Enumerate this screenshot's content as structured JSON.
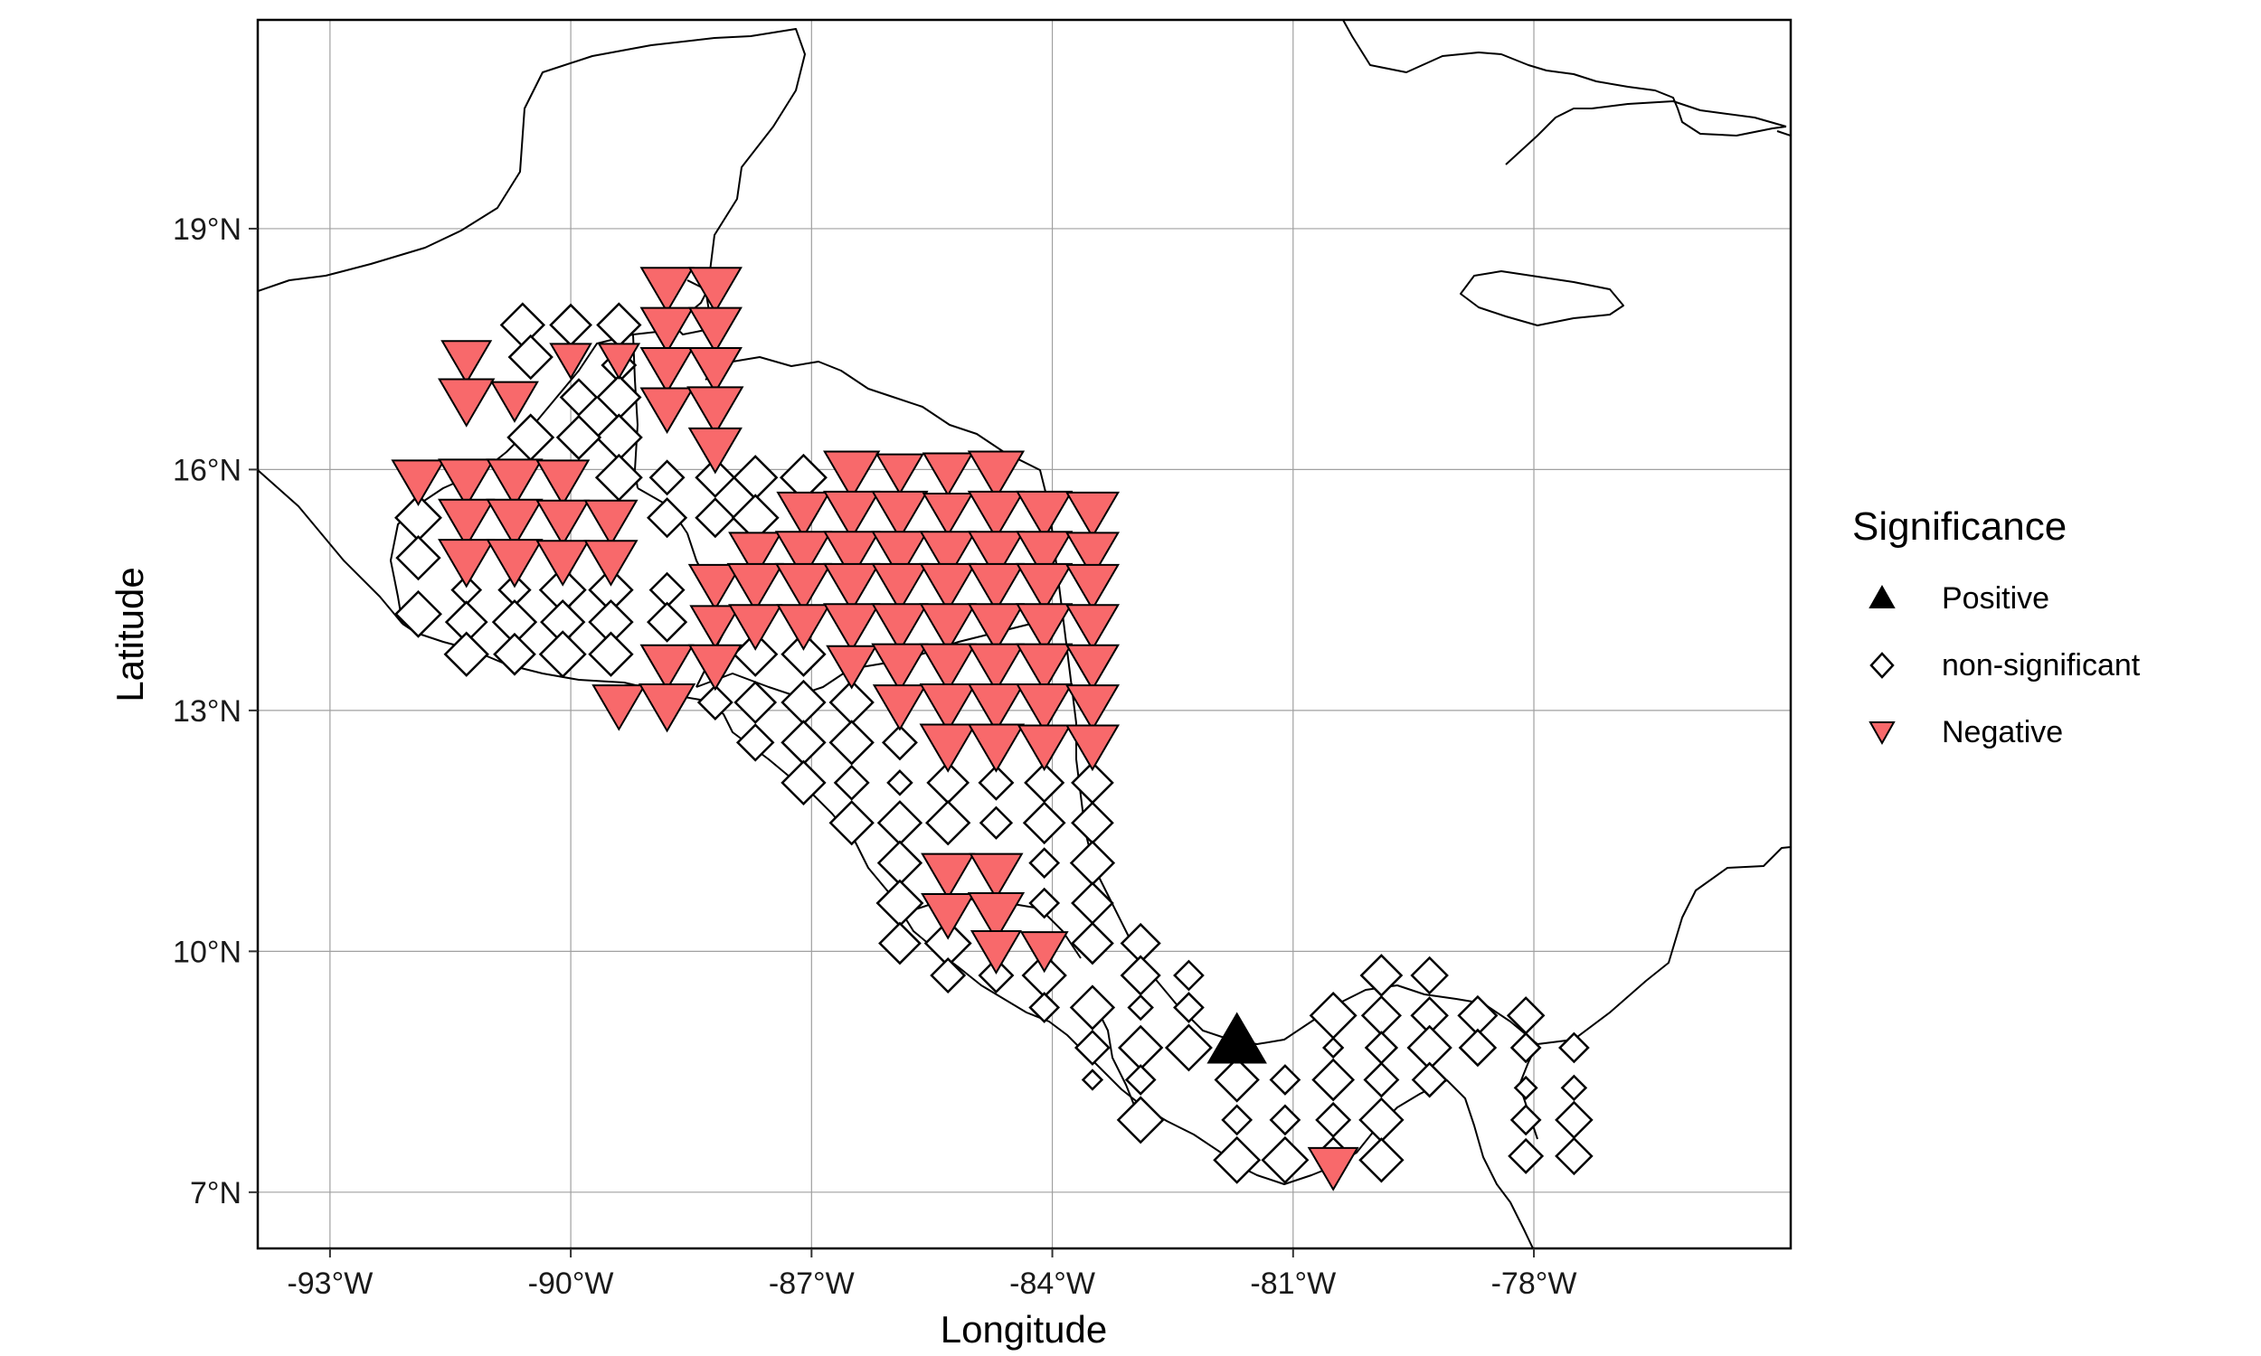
{
  "chart_data": {
    "type": "scatter",
    "xlabel": "Longitude",
    "ylabel": "Latitude",
    "xlim": [
      -93.9,
      -74.8
    ],
    "ylim": [
      6.3,
      21.6
    ],
    "x_ticks": [
      {
        "value": -93,
        "label": "-93°W"
      },
      {
        "value": -90,
        "label": "-90°W"
      },
      {
        "value": -87,
        "label": "-87°W"
      },
      {
        "value": -84,
        "label": "-84°W"
      },
      {
        "value": -81,
        "label": "-81°W"
      },
      {
        "value": -78,
        "label": "-78°W"
      }
    ],
    "y_ticks": [
      {
        "value": 7,
        "label": "7°N"
      },
      {
        "value": 10,
        "label": "10°N"
      },
      {
        "value": 13,
        "label": "13°N"
      },
      {
        "value": 16,
        "label": "16°N"
      },
      {
        "value": 19,
        "label": "19°N"
      }
    ],
    "grid": true,
    "legend": {
      "title": "Significance",
      "placement": "right",
      "entries": [
        {
          "key": "positive",
          "label": "Positive",
          "color": "#000000",
          "shape": "triangle-up"
        },
        {
          "key": "nonsig",
          "label": "non-significant",
          "color": "#ffffff",
          "shape": "diamond"
        },
        {
          "key": "negative",
          "label": "Negative",
          "color": "#f8696b",
          "shape": "triangle-down"
        }
      ]
    },
    "series": [
      {
        "name": "Positive",
        "points": [
          [
            -81.7,
            8.85,
            1.0
          ]
        ]
      },
      {
        "name": "Negative",
        "points": [
          [
            -88.8,
            18.3,
            0.9
          ],
          [
            -88.2,
            18.3,
            0.9
          ],
          [
            -88.8,
            17.8,
            0.9
          ],
          [
            -88.2,
            17.8,
            0.9
          ],
          [
            -91.3,
            17.4,
            0.85
          ],
          [
            -90.0,
            17.4,
            0.7
          ],
          [
            -89.4,
            17.4,
            0.7
          ],
          [
            -88.8,
            17.3,
            0.9
          ],
          [
            -88.2,
            17.3,
            0.9
          ],
          [
            -91.3,
            16.9,
            0.95
          ],
          [
            -90.7,
            16.9,
            0.8
          ],
          [
            -88.8,
            16.8,
            0.9
          ],
          [
            -88.2,
            16.8,
            0.95
          ],
          [
            -88.2,
            16.3,
            0.9
          ],
          [
            -91.9,
            15.9,
            0.9
          ],
          [
            -91.3,
            15.9,
            0.95
          ],
          [
            -90.7,
            15.9,
            0.95
          ],
          [
            -90.1,
            15.9,
            0.9
          ],
          [
            -86.5,
            16.0,
            0.95
          ],
          [
            -85.9,
            16.0,
            0.8
          ],
          [
            -85.3,
            16.0,
            0.85
          ],
          [
            -84.7,
            16.0,
            0.95
          ],
          [
            -91.3,
            15.4,
            0.95
          ],
          [
            -90.7,
            15.4,
            0.95
          ],
          [
            -90.1,
            15.4,
            0.9
          ],
          [
            -89.5,
            15.4,
            0.9
          ],
          [
            -87.1,
            15.5,
            0.9
          ],
          [
            -86.5,
            15.5,
            0.95
          ],
          [
            -85.9,
            15.5,
            0.95
          ],
          [
            -85.3,
            15.5,
            0.85
          ],
          [
            -84.7,
            15.5,
            0.95
          ],
          [
            -84.1,
            15.5,
            0.95
          ],
          [
            -83.5,
            15.5,
            0.9
          ],
          [
            -91.3,
            14.9,
            0.95
          ],
          [
            -90.7,
            14.9,
            0.95
          ],
          [
            -90.1,
            14.9,
            0.9
          ],
          [
            -89.5,
            14.9,
            0.9
          ],
          [
            -87.7,
            15.0,
            0.9
          ],
          [
            -87.1,
            15.0,
            0.95
          ],
          [
            -86.5,
            15.0,
            0.95
          ],
          [
            -85.9,
            15.0,
            0.95
          ],
          [
            -85.3,
            15.0,
            0.95
          ],
          [
            -84.7,
            15.0,
            0.95
          ],
          [
            -84.1,
            15.0,
            0.95
          ],
          [
            -83.5,
            15.0,
            0.9
          ],
          [
            -88.2,
            14.6,
            0.9
          ],
          [
            -87.7,
            14.6,
            0.95
          ],
          [
            -87.1,
            14.6,
            0.95
          ],
          [
            -86.5,
            14.6,
            0.95
          ],
          [
            -85.9,
            14.6,
            0.95
          ],
          [
            -85.3,
            14.6,
            0.95
          ],
          [
            -84.7,
            14.6,
            0.95
          ],
          [
            -84.1,
            14.6,
            0.95
          ],
          [
            -83.5,
            14.6,
            0.9
          ],
          [
            -88.2,
            14.1,
            0.85
          ],
          [
            -87.7,
            14.1,
            0.9
          ],
          [
            -87.1,
            14.1,
            0.9
          ],
          [
            -86.5,
            14.1,
            0.95
          ],
          [
            -85.9,
            14.1,
            0.95
          ],
          [
            -85.3,
            14.1,
            0.95
          ],
          [
            -84.7,
            14.1,
            0.95
          ],
          [
            -84.1,
            14.1,
            0.95
          ],
          [
            -83.5,
            14.1,
            0.9
          ],
          [
            -88.8,
            13.6,
            0.9
          ],
          [
            -88.2,
            13.6,
            0.9
          ],
          [
            -86.5,
            13.6,
            0.85
          ],
          [
            -85.9,
            13.6,
            0.95
          ],
          [
            -85.3,
            13.6,
            0.95
          ],
          [
            -84.7,
            13.6,
            0.95
          ],
          [
            -84.1,
            13.6,
            0.95
          ],
          [
            -83.5,
            13.6,
            0.9
          ],
          [
            -89.4,
            13.1,
            0.9
          ],
          [
            -88.8,
            13.1,
            0.95
          ],
          [
            -85.9,
            13.1,
            0.9
          ],
          [
            -85.3,
            13.1,
            0.95
          ],
          [
            -84.7,
            13.1,
            0.95
          ],
          [
            -84.1,
            13.1,
            0.95
          ],
          [
            -83.5,
            13.1,
            0.9
          ],
          [
            -85.3,
            12.6,
            0.95
          ],
          [
            -84.7,
            12.6,
            0.95
          ],
          [
            -84.1,
            12.6,
            0.9
          ],
          [
            -83.5,
            12.6,
            0.9
          ],
          [
            -85.3,
            11.0,
            0.9
          ],
          [
            -84.7,
            11.0,
            0.9
          ],
          [
            -85.3,
            10.5,
            0.9
          ],
          [
            -84.7,
            10.5,
            0.95
          ],
          [
            -84.7,
            10.05,
            0.85
          ],
          [
            -84.1,
            10.05,
            0.8
          ],
          [
            -80.5,
            7.35,
            0.85
          ]
        ]
      },
      {
        "name": "non-significant",
        "points": [
          [
            -90.6,
            17.8,
            0.9
          ],
          [
            -90.0,
            17.8,
            0.85
          ],
          [
            -89.4,
            17.8,
            0.9
          ],
          [
            -89.4,
            17.3,
            0.7
          ],
          [
            -90.5,
            17.4,
            0.9
          ],
          [
            -89.4,
            16.9,
            0.9
          ],
          [
            -89.9,
            16.9,
            0.75
          ],
          [
            -89.4,
            16.4,
            0.95
          ],
          [
            -89.9,
            16.4,
            0.9
          ],
          [
            -90.5,
            16.4,
            0.95
          ],
          [
            -89.4,
            15.9,
            0.95
          ],
          [
            -88.8,
            15.9,
            0.7
          ],
          [
            -88.2,
            15.9,
            0.8
          ],
          [
            -87.7,
            15.9,
            0.9
          ],
          [
            -87.1,
            15.9,
            0.95
          ],
          [
            -91.9,
            15.4,
            0.95
          ],
          [
            -88.8,
            15.4,
            0.8
          ],
          [
            -88.2,
            15.4,
            0.8
          ],
          [
            -87.7,
            15.4,
            0.95
          ],
          [
            -91.9,
            14.9,
            0.9
          ],
          [
            -91.3,
            14.5,
            0.6
          ],
          [
            -90.7,
            14.5,
            0.65
          ],
          [
            -89.5,
            14.5,
            0.9
          ],
          [
            -88.8,
            14.5,
            0.7
          ],
          [
            -90.1,
            14.5,
            0.95
          ],
          [
            -91.9,
            14.2,
            0.95
          ],
          [
            -91.3,
            14.1,
            0.85
          ],
          [
            -90.7,
            14.1,
            0.9
          ],
          [
            -90.1,
            14.1,
            0.9
          ],
          [
            -89.5,
            14.1,
            0.9
          ],
          [
            -88.8,
            14.1,
            0.8
          ],
          [
            -91.3,
            13.7,
            0.9
          ],
          [
            -90.7,
            13.7,
            0.85
          ],
          [
            -90.1,
            13.7,
            0.95
          ],
          [
            -89.5,
            13.7,
            0.9
          ],
          [
            -87.7,
            13.7,
            0.9
          ],
          [
            -87.1,
            13.7,
            0.9
          ],
          [
            -88.2,
            13.1,
            0.7
          ],
          [
            -87.7,
            13.1,
            0.85
          ],
          [
            -87.1,
            13.1,
            0.9
          ],
          [
            -86.5,
            13.1,
            0.9
          ],
          [
            -87.7,
            12.6,
            0.75
          ],
          [
            -87.1,
            12.6,
            0.9
          ],
          [
            -86.5,
            12.6,
            0.9
          ],
          [
            -85.9,
            12.6,
            0.7
          ],
          [
            -87.1,
            12.1,
            0.9
          ],
          [
            -86.5,
            12.1,
            0.7
          ],
          [
            -85.9,
            12.1,
            0.5
          ],
          [
            -85.3,
            12.1,
            0.85
          ],
          [
            -84.7,
            12.1,
            0.7
          ],
          [
            -84.1,
            12.1,
            0.8
          ],
          [
            -83.5,
            12.1,
            0.85
          ],
          [
            -86.5,
            11.6,
            0.9
          ],
          [
            -85.9,
            11.6,
            0.9
          ],
          [
            -85.3,
            11.6,
            0.9
          ],
          [
            -84.7,
            11.6,
            0.65
          ],
          [
            -84.1,
            11.6,
            0.85
          ],
          [
            -83.5,
            11.6,
            0.85
          ],
          [
            -85.9,
            11.1,
            0.9
          ],
          [
            -84.1,
            11.1,
            0.6
          ],
          [
            -83.5,
            11.1,
            0.9
          ],
          [
            -85.9,
            10.6,
            0.95
          ],
          [
            -84.1,
            10.6,
            0.6
          ],
          [
            -83.5,
            10.6,
            0.85
          ],
          [
            -85.9,
            10.1,
            0.85
          ],
          [
            -85.3,
            10.1,
            0.95
          ],
          [
            -83.5,
            10.1,
            0.85
          ],
          [
            -82.9,
            10.1,
            0.8
          ],
          [
            -85.3,
            9.7,
            0.7
          ],
          [
            -84.7,
            9.7,
            0.7
          ],
          [
            -84.1,
            9.7,
            0.9
          ],
          [
            -82.9,
            9.7,
            0.8
          ],
          [
            -82.3,
            9.7,
            0.6
          ],
          [
            -84.1,
            9.3,
            0.6
          ],
          [
            -83.5,
            9.3,
            0.9
          ],
          [
            -82.9,
            9.3,
            0.5
          ],
          [
            -82.3,
            9.3,
            0.6
          ],
          [
            -83.5,
            8.8,
            0.7
          ],
          [
            -82.9,
            8.8,
            0.9
          ],
          [
            -82.3,
            8.8,
            0.95
          ],
          [
            -83.5,
            8.4,
            0.4
          ],
          [
            -82.9,
            8.4,
            0.6
          ],
          [
            -81.7,
            8.4,
            0.9
          ],
          [
            -81.1,
            8.4,
            0.6
          ],
          [
            -82.9,
            7.9,
            0.95
          ],
          [
            -81.7,
            7.9,
            0.6
          ],
          [
            -81.1,
            7.9,
            0.6
          ],
          [
            -81.7,
            7.4,
            0.95
          ],
          [
            -81.1,
            7.4,
            0.95
          ],
          [
            -80.5,
            9.2,
            0.95
          ],
          [
            -79.9,
            9.7,
            0.85
          ],
          [
            -79.3,
            9.7,
            0.75
          ],
          [
            -79.9,
            9.2,
            0.8
          ],
          [
            -79.3,
            9.2,
            0.75
          ],
          [
            -78.7,
            9.2,
            0.8
          ],
          [
            -78.1,
            9.2,
            0.75
          ],
          [
            -80.5,
            8.8,
            0.4
          ],
          [
            -79.9,
            8.8,
            0.65
          ],
          [
            -79.3,
            8.8,
            0.9
          ],
          [
            -78.7,
            8.8,
            0.75
          ],
          [
            -78.1,
            8.8,
            0.6
          ],
          [
            -77.5,
            8.8,
            0.6
          ],
          [
            -80.5,
            8.4,
            0.85
          ],
          [
            -79.9,
            8.4,
            0.7
          ],
          [
            -79.3,
            8.4,
            0.7
          ],
          [
            -78.1,
            8.3,
            0.45
          ],
          [
            -77.5,
            8.3,
            0.5
          ],
          [
            -80.5,
            7.9,
            0.7
          ],
          [
            -79.9,
            7.9,
            0.9
          ],
          [
            -78.1,
            7.9,
            0.6
          ],
          [
            -77.5,
            7.9,
            0.75
          ],
          [
            -80.5,
            7.5,
            0.6
          ],
          [
            -79.9,
            7.4,
            0.9
          ],
          [
            -78.1,
            7.45,
            0.7
          ],
          [
            -77.5,
            7.45,
            0.75
          ]
        ]
      }
    ]
  }
}
